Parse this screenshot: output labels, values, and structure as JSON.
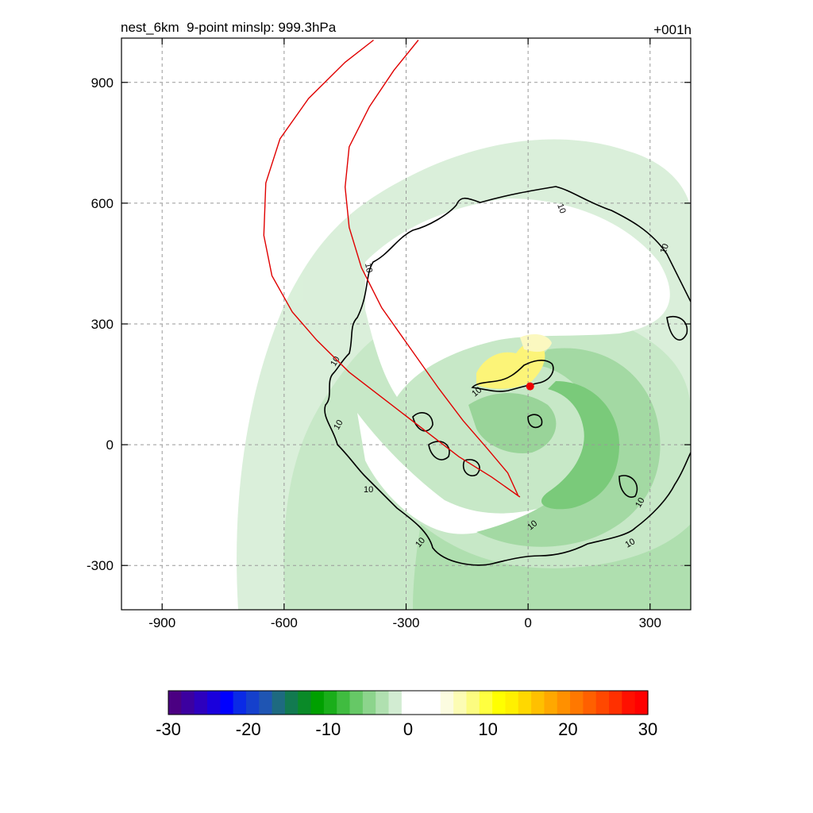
{
  "chart_data": {
    "type": "contour",
    "title": "nest_6km  9-point minslp: 999.3hPa",
    "time_label": "+001h",
    "xlabel": "",
    "ylabel": "",
    "xlim": [
      -1000,
      400
    ],
    "ylim": [
      -410,
      1010
    ],
    "xticks": [
      -900,
      -600,
      -300,
      0,
      300
    ],
    "yticks": [
      -300,
      0,
      300,
      600,
      900
    ],
    "grid": true,
    "contour_level": 10,
    "contour_label": "10",
    "center_marker": {
      "x": 5,
      "y": 145,
      "color": "#ee0000"
    },
    "red_track_outer": [
      [
        -380,
        1005
      ],
      [
        -450,
        950
      ],
      [
        -540,
        860
      ],
      [
        -610,
        760
      ],
      [
        -645,
        650
      ],
      [
        -650,
        520
      ],
      [
        -630,
        420
      ],
      [
        -580,
        330
      ],
      [
        -520,
        260
      ],
      [
        -440,
        180
      ],
      [
        -350,
        110
      ],
      [
        -260,
        40
      ],
      [
        -170,
        -30
      ],
      [
        -90,
        -80
      ],
      [
        -20,
        -130
      ]
    ],
    "red_track_inner": [
      [
        -270,
        1005
      ],
      [
        -330,
        930
      ],
      [
        -390,
        840
      ],
      [
        -440,
        740
      ],
      [
        -450,
        640
      ],
      [
        -440,
        540
      ],
      [
        -410,
        440
      ],
      [
        -360,
        340
      ],
      [
        -290,
        240
      ],
      [
        -220,
        140
      ],
      [
        -160,
        60
      ],
      [
        -100,
        -10
      ],
      [
        -50,
        -70
      ],
      [
        -25,
        -125
      ]
    ],
    "colorbar": {
      "ticks": [
        -30,
        -20,
        -10,
        0,
        10,
        20,
        30
      ],
      "colors": [
        "#4b0082",
        "#3c00a0",
        "#2d00be",
        "#1a00dc",
        "#0000ff",
        "#0a2ae6",
        "#1540cc",
        "#1f55b3",
        "#1e6a80",
        "#127a50",
        "#0a8a28",
        "#00a000",
        "#1aae1a",
        "#40bc40",
        "#66c866",
        "#8cd48c",
        "#b0e0b0",
        "#d2ecd2",
        "#ffffff",
        "#ffffff",
        "#ffffff",
        "#fcfce0",
        "#fcfcb4",
        "#fcfc80",
        "#ffff40",
        "#ffff00",
        "#fff000",
        "#ffd800",
        "#ffc000",
        "#ffa800",
        "#ff9000",
        "#ff7800",
        "#ff6000",
        "#ff4800",
        "#ff3000",
        "#ff1000",
        "#ff0000"
      ]
    }
  }
}
